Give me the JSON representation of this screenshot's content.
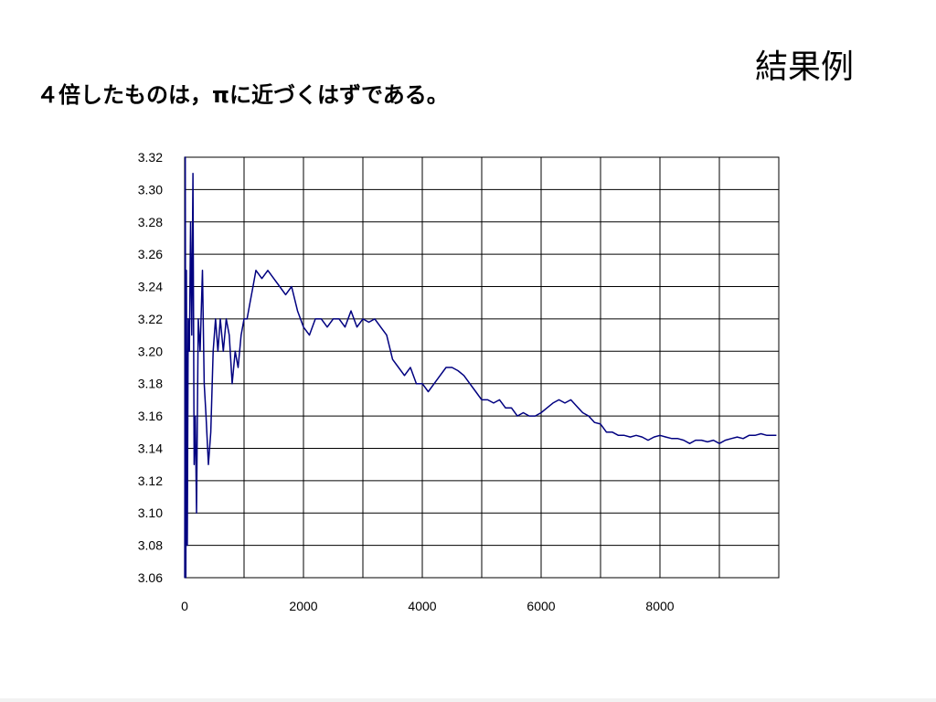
{
  "slide": {
    "title": "結果例",
    "caption": "４倍したものは，πに近づくはずである。"
  },
  "chart_data": {
    "type": "line",
    "title": "",
    "xlabel": "",
    "ylabel": "",
    "xlim": [
      0,
      10000
    ],
    "ylim": [
      3.06,
      3.32
    ],
    "x_ticks": [
      0,
      2000,
      4000,
      6000,
      8000
    ],
    "x_tick_labels": [
      "0",
      "2000",
      "4000",
      "6000",
      "8000"
    ],
    "y_ticks": [
      3.06,
      3.08,
      3.1,
      3.12,
      3.14,
      3.16,
      3.18,
      3.2,
      3.22,
      3.24,
      3.26,
      3.28,
      3.3,
      3.32
    ],
    "y_tick_labels": [
      "3.06",
      "3.08",
      "3.10",
      "3.12",
      "3.14",
      "3.16",
      "3.18",
      "3.20",
      "3.22",
      "3.24",
      "3.26",
      "3.28",
      "3.30",
      "3.32"
    ],
    "grid": true,
    "line_color": "#000080",
    "series": [
      {
        "x": [
          1,
          10,
          20,
          30,
          45,
          60,
          80,
          100,
          120,
          140,
          160,
          180,
          200,
          230,
          260,
          300,
          330,
          360,
          400,
          440,
          480,
          520,
          560,
          600,
          650,
          700,
          750,
          800,
          850,
          900,
          950,
          1000,
          1050,
          1100,
          1150,
          1200,
          1300,
          1400,
          1500,
          1600,
          1700,
          1800,
          1900,
          2000,
          2100,
          2200,
          2300,
          2400,
          2500,
          2600,
          2700,
          2800,
          2900,
          3000,
          3100,
          3200,
          3300,
          3400,
          3500,
          3600,
          3700,
          3800,
          3900,
          4000,
          4100,
          4200,
          4300,
          4400,
          4500,
          4600,
          4700,
          4800,
          4900,
          5000,
          5100,
          5200,
          5300,
          5400,
          5500,
          5600,
          5700,
          5800,
          5900,
          6000,
          6100,
          6200,
          6300,
          6400,
          6500,
          6600,
          6700,
          6800,
          6900,
          7000,
          7100,
          7200,
          7300,
          7400,
          7500,
          7600,
          7700,
          7800,
          7900,
          8000,
          8100,
          8200,
          8300,
          8400,
          8500,
          8600,
          8700,
          8800,
          8900,
          9000,
          9100,
          9200,
          9300,
          9400,
          9500,
          9600,
          9700,
          9800,
          9900,
          9960
        ],
        "y": [
          3.06,
          3.32,
          3.06,
          3.25,
          3.08,
          3.22,
          3.2,
          3.28,
          3.21,
          3.31,
          3.13,
          3.16,
          3.1,
          3.22,
          3.2,
          3.25,
          3.18,
          3.16,
          3.13,
          3.15,
          3.2,
          3.22,
          3.2,
          3.22,
          3.2,
          3.22,
          3.21,
          3.18,
          3.2,
          3.19,
          3.21,
          3.22,
          3.22,
          3.23,
          3.24,
          3.25,
          3.245,
          3.25,
          3.245,
          3.24,
          3.235,
          3.24,
          3.225,
          3.215,
          3.21,
          3.22,
          3.22,
          3.215,
          3.22,
          3.22,
          3.215,
          3.225,
          3.215,
          3.22,
          3.218,
          3.22,
          3.215,
          3.21,
          3.195,
          3.19,
          3.185,
          3.19,
          3.18,
          3.18,
          3.175,
          3.18,
          3.185,
          3.19,
          3.19,
          3.188,
          3.185,
          3.18,
          3.175,
          3.17,
          3.17,
          3.168,
          3.17,
          3.165,
          3.165,
          3.16,
          3.162,
          3.16,
          3.16,
          3.162,
          3.165,
          3.168,
          3.17,
          3.168,
          3.17,
          3.166,
          3.162,
          3.16,
          3.156,
          3.155,
          3.15,
          3.15,
          3.148,
          3.148,
          3.147,
          3.148,
          3.147,
          3.145,
          3.147,
          3.148,
          3.147,
          3.146,
          3.146,
          3.145,
          3.143,
          3.145,
          3.145,
          3.144,
          3.145,
          3.143,
          3.145,
          3.146,
          3.147,
          3.146,
          3.148,
          3.148,
          3.149,
          3.148,
          3.148,
          3.148
        ]
      }
    ]
  }
}
